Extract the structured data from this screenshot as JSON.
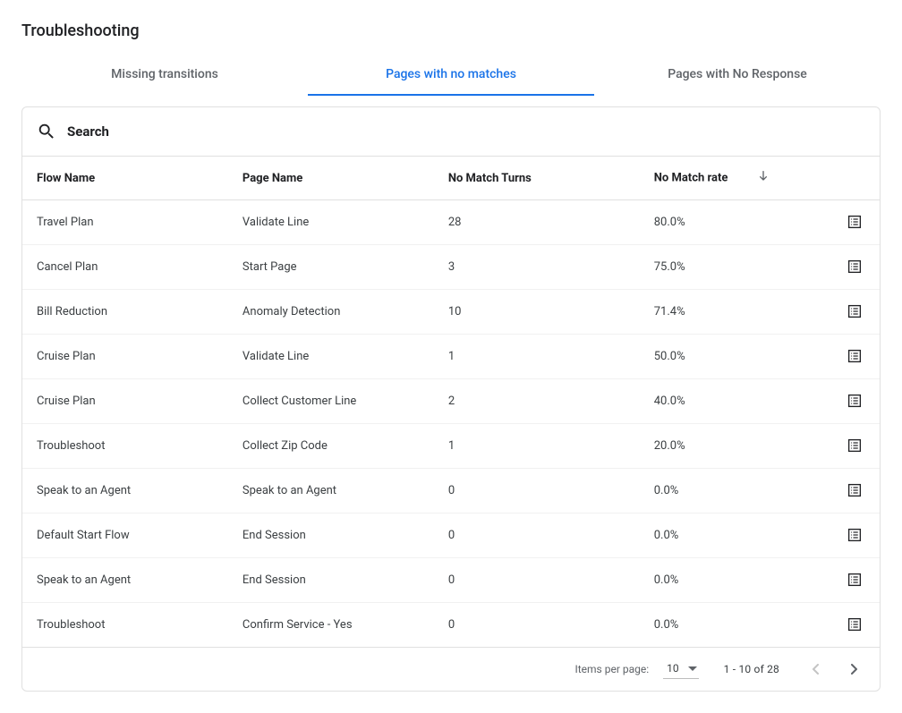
{
  "title": "Troubleshooting",
  "tabs": [
    {
      "label": "Missing transitions",
      "active": false
    },
    {
      "label": "Pages with no matches",
      "active": true
    },
    {
      "label": "Pages with No Response",
      "active": false
    }
  ],
  "search": {
    "placeholder": "Search"
  },
  "table": {
    "columns": {
      "flow": "Flow Name",
      "page": "Page Name",
      "turns": "No Match Turns",
      "rate": "No Match rate"
    },
    "sort": {
      "column": "rate",
      "direction": "desc"
    },
    "rows": [
      {
        "flow": "Travel Plan",
        "page": "Validate Line",
        "turns": "28",
        "rate": "80.0%"
      },
      {
        "flow": "Cancel Plan",
        "page": "Start Page",
        "turns": "3",
        "rate": "75.0%"
      },
      {
        "flow": "Bill Reduction",
        "page": "Anomaly Detection",
        "turns": "10",
        "rate": "71.4%"
      },
      {
        "flow": "Cruise Plan",
        "page": "Validate Line",
        "turns": "1",
        "rate": "50.0%"
      },
      {
        "flow": "Cruise Plan",
        "page": "Collect Customer Line",
        "turns": "2",
        "rate": "40.0%"
      },
      {
        "flow": "Troubleshoot",
        "page": "Collect Zip Code",
        "turns": "1",
        "rate": "20.0%"
      },
      {
        "flow": "Speak to an Agent",
        "page": "Speak to an Agent",
        "turns": "0",
        "rate": "0.0%"
      },
      {
        "flow": "Default Start Flow",
        "page": "End Session",
        "turns": "0",
        "rate": "0.0%"
      },
      {
        "flow": "Speak to an Agent",
        "page": "End Session",
        "turns": "0",
        "rate": "0.0%"
      },
      {
        "flow": "Troubleshoot",
        "page": "Confirm Service - Yes",
        "turns": "0",
        "rate": "0.0%"
      }
    ]
  },
  "pagination": {
    "items_per_page_label": "Items per page:",
    "items_per_page_value": "10",
    "range": "1 - 10 of 28",
    "prev_disabled": true,
    "next_disabled": false
  }
}
